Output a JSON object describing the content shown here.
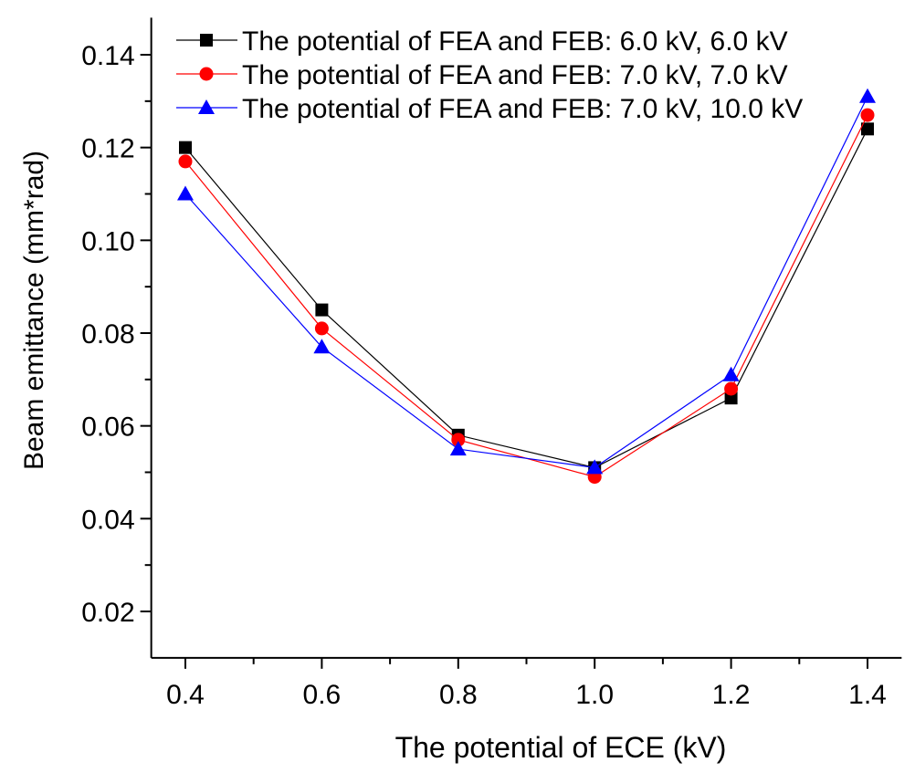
{
  "chart_data": {
    "type": "line",
    "title": "",
    "xlabel": "The potential of ECE (kV)",
    "ylabel": "Beam emittance (mm*rad)",
    "xlim": [
      0.35,
      1.45
    ],
    "ylim": [
      0.01,
      0.148
    ],
    "x_ticks": [
      "0.4",
      "0.6",
      "0.8",
      "1.0",
      "1.2",
      "1.4"
    ],
    "y_ticks": [
      "0.02",
      "0.04",
      "0.06",
      "0.08",
      "0.10",
      "0.12",
      "0.14"
    ],
    "grid": false,
    "legend_position": "top",
    "x": [
      0.4,
      0.6,
      0.8,
      1.0,
      1.2,
      1.4
    ],
    "series": [
      {
        "name": "The potential of FEA and FEB: 6.0 kV, 6.0 kV",
        "color": "#000000",
        "marker": "square",
        "values": [
          0.12,
          0.085,
          0.058,
          0.051,
          0.066,
          0.124
        ]
      },
      {
        "name": "The potential of FEA and FEB: 7.0 kV, 7.0 kV",
        "color": "#ff0000",
        "marker": "circle",
        "values": [
          0.117,
          0.081,
          0.057,
          0.049,
          0.068,
          0.127
        ]
      },
      {
        "name": "The potential of FEA and FEB: 7.0 kV, 10.0 kV",
        "color": "#0000ff",
        "marker": "triangle",
        "values": [
          0.11,
          0.077,
          0.055,
          0.051,
          0.071,
          0.131
        ]
      }
    ]
  }
}
